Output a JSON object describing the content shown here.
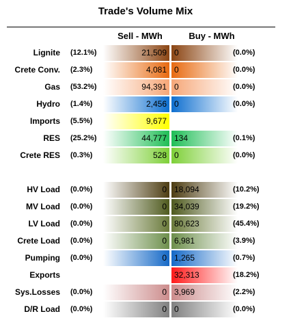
{
  "title": "Trade's Volume Mix",
  "header": {
    "sell": "Sell - MWh",
    "buy": "Buy - MWh"
  },
  "chart_data": {
    "type": "table",
    "columns": [
      "Sell - MWh",
      "Buy - MWh"
    ],
    "groups": [
      {
        "rows": [
          {
            "label": "Lignite",
            "sell": "21,509",
            "sell_pct": "(12.1%)",
            "buy": "0",
            "buy_pct": "(0.0%)",
            "color": "#8b4513"
          },
          {
            "label": "Crete Conv.",
            "sell": "4,081",
            "sell_pct": "(2.3%)",
            "buy": "0",
            "buy_pct": "(0.0%)",
            "color": "#e86a10"
          },
          {
            "label": "Gas",
            "sell": "94,391",
            "sell_pct": "(53.2%)",
            "buy": "0",
            "buy_pct": "(0.0%)",
            "color": "#f6a778"
          },
          {
            "label": "Hydro",
            "sell": "2,456",
            "sell_pct": "(1.4%)",
            "buy": "0",
            "buy_pct": "(0.0%)",
            "color": "#0e6fd0"
          },
          {
            "label": "Imports",
            "sell": "9,677",
            "sell_pct": "(5.5%)",
            "buy": "",
            "buy_pct": "",
            "color": "#ffff00"
          },
          {
            "label": "RES",
            "sell": "44,777",
            "sell_pct": "(25.2%)",
            "buy": "134",
            "buy_pct": "(0.1%)",
            "color": "#1fbe56"
          },
          {
            "label": "Crete RES",
            "sell": "528",
            "sell_pct": "(0.3%)",
            "buy": "0",
            "buy_pct": "(0.0%)",
            "color": "#7ed038"
          }
        ]
      },
      {
        "rows": [
          {
            "label": "HV Load",
            "sell": "0",
            "sell_pct": "(0.0%)",
            "buy": "18,094",
            "buy_pct": "(10.2%)",
            "color": "#4d3d12"
          },
          {
            "label": "MV Load",
            "sell": "0",
            "sell_pct": "(0.0%)",
            "buy": "34,039",
            "buy_pct": "(19.2%)",
            "color": "#4f5a1e"
          },
          {
            "label": "LV Load",
            "sell": "0",
            "sell_pct": "(0.0%)",
            "buy": "80,623",
            "buy_pct": "(45.4%)",
            "color": "#6a7a3a"
          },
          {
            "label": "Crete Load",
            "sell": "0",
            "sell_pct": "(0.0%)",
            "buy": "6,981",
            "buy_pct": "(3.9%)",
            "color": "#6d8f4c"
          },
          {
            "label": "Pumping",
            "sell": "0",
            "sell_pct": "(0.0%)",
            "buy": "1,265",
            "buy_pct": "(0.7%)",
            "color": "#1569c7"
          },
          {
            "label": "Exports",
            "sell": "",
            "sell_pct": "",
            "buy": "32,313",
            "buy_pct": "(18.2%)",
            "color": "#ff1a1a"
          },
          {
            "label": "Sys.Losses",
            "sell": "0",
            "sell_pct": "(0.0%)",
            "buy": "3,969",
            "buy_pct": "(2.2%)",
            "color": "#cc8c8c"
          },
          {
            "label": "D/R Load",
            "sell": "0",
            "sell_pct": "(0.0%)",
            "buy": "0",
            "buy_pct": "(0.0%)",
            "color": "#808080"
          }
        ]
      }
    ]
  }
}
